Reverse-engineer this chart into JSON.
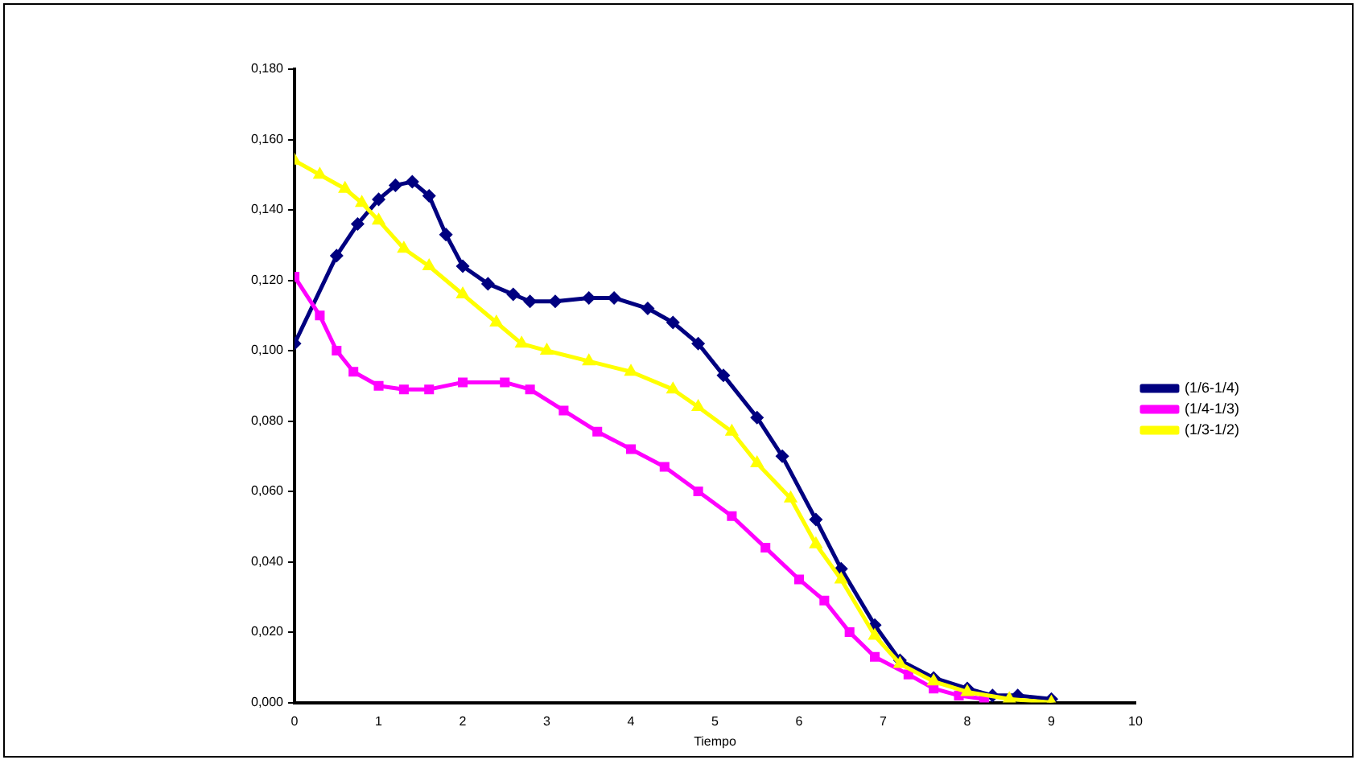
{
  "chart_data": {
    "type": "line",
    "xlabel": "Tiempo",
    "xlim": [
      0,
      10
    ],
    "xticks": [
      0,
      1,
      2,
      3,
      4,
      5,
      6,
      7,
      8,
      9,
      10
    ],
    "ylim": [
      0,
      0.18
    ],
    "yticks": [
      {
        "value": 0,
        "label": "0,000"
      },
      {
        "value": 0.02,
        "label": "0,020"
      },
      {
        "value": 0.04,
        "label": "0,040"
      },
      {
        "value": 0.06,
        "label": "0,060"
      },
      {
        "value": 0.08,
        "label": "0,080"
      },
      {
        "value": 0.1,
        "label": "0,100"
      },
      {
        "value": 0.12,
        "label": "0,120"
      },
      {
        "value": 0.14,
        "label": "0,140"
      },
      {
        "value": 0.16,
        "label": "0,160"
      },
      {
        "value": 0.18,
        "label": "0,180"
      }
    ],
    "grid": false,
    "legend": "right",
    "series": [
      {
        "name": "(1/6-1/4)",
        "color": "#000080",
        "marker": "diamond",
        "x": [
          0,
          0.5,
          0.75,
          1.0,
          1.2,
          1.4,
          1.6,
          1.8,
          2.0,
          2.3,
          2.6,
          2.8,
          3.1,
          3.5,
          3.8,
          4.2,
          4.5,
          4.8,
          5.1,
          5.5,
          5.8,
          6.2,
          6.5,
          6.9,
          7.2,
          7.6,
          8.0,
          8.3,
          8.6,
          9.0
        ],
        "values": [
          0.102,
          0.127,
          0.136,
          0.143,
          0.147,
          0.148,
          0.144,
          0.133,
          0.124,
          0.119,
          0.116,
          0.114,
          0.114,
          0.115,
          0.115,
          0.112,
          0.108,
          0.102,
          0.093,
          0.081,
          0.07,
          0.052,
          0.038,
          0.022,
          0.012,
          0.007,
          0.004,
          0.002,
          0.002,
          0.001
        ]
      },
      {
        "name": "(1/4-1/3)",
        "color": "#ff00ff",
        "marker": "square",
        "x": [
          0,
          0.3,
          0.5,
          0.7,
          1.0,
          1.3,
          1.6,
          2.0,
          2.5,
          2.8,
          3.2,
          3.6,
          4.0,
          4.4,
          4.8,
          5.2,
          5.6,
          6.0,
          6.3,
          6.6,
          6.9,
          7.3,
          7.6,
          7.9,
          8.2
        ],
        "values": [
          0.121,
          0.11,
          0.1,
          0.094,
          0.09,
          0.089,
          0.089,
          0.091,
          0.091,
          0.089,
          0.083,
          0.077,
          0.072,
          0.067,
          0.06,
          0.053,
          0.044,
          0.035,
          0.029,
          0.02,
          0.013,
          0.008,
          0.004,
          0.002,
          0.001
        ]
      },
      {
        "name": "(1/3-1/2)",
        "color": "#ffff00",
        "marker": "triangle",
        "x": [
          0,
          0.3,
          0.6,
          0.8,
          1.0,
          1.3,
          1.6,
          2.0,
          2.4,
          2.7,
          3.0,
          3.5,
          4.0,
          4.5,
          4.8,
          5.2,
          5.5,
          5.9,
          6.2,
          6.5,
          6.9,
          7.2,
          7.6,
          8.0,
          8.5,
          9.0
        ],
        "values": [
          0.154,
          0.15,
          0.146,
          0.142,
          0.137,
          0.129,
          0.124,
          0.116,
          0.108,
          0.102,
          0.1,
          0.097,
          0.094,
          0.089,
          0.084,
          0.077,
          0.068,
          0.058,
          0.045,
          0.035,
          0.019,
          0.011,
          0.006,
          0.003,
          0.001,
          0.0
        ]
      }
    ]
  }
}
